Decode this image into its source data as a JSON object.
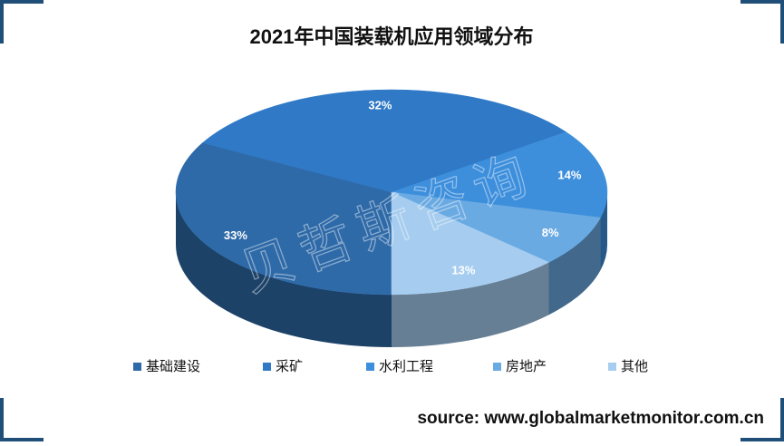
{
  "chart_data": {
    "type": "pie",
    "title": "2021年中国装载机应用领域分布",
    "categories": [
      "基础建设",
      "采矿",
      "水利工程",
      "房地产",
      "其他"
    ],
    "values": [
      33,
      32,
      14,
      8,
      13
    ],
    "value_labels": [
      "33%",
      "32%",
      "14%",
      "8%",
      "13%"
    ],
    "colors": [
      "#2f6aa8",
      "#2f79c6",
      "#3d8fdc",
      "#6aaae2",
      "#a6cdef"
    ],
    "watermark": "贝哲斯咨询",
    "source": "source: www.globalmarketmonitor.com.cn"
  }
}
